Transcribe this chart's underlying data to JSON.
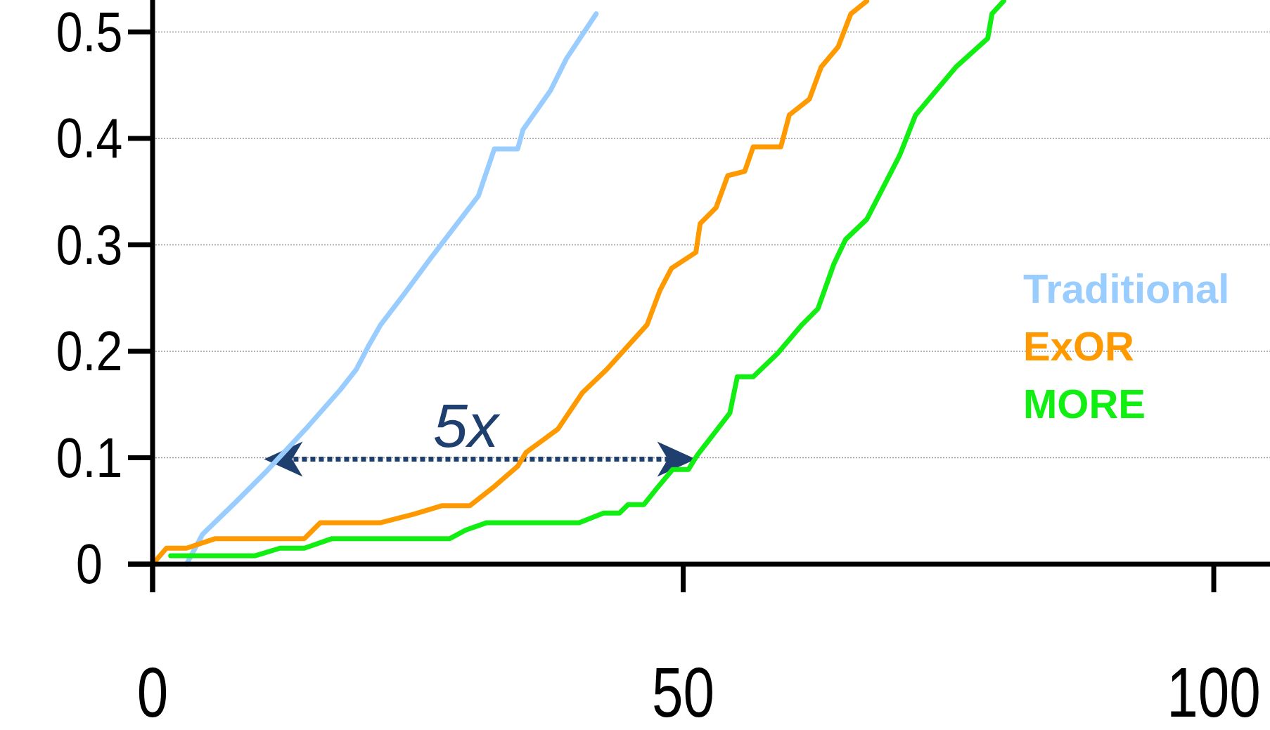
{
  "chart_data": {
    "type": "line",
    "xlim": [
      0,
      105.3
    ],
    "ylim": [
      0,
      0.53
    ],
    "xticks": [
      0,
      50,
      100
    ],
    "yticks": [
      0,
      0.1,
      0.2,
      0.3,
      0.4,
      0.5
    ],
    "grid": "y",
    "legend": "right",
    "line_style": "solid",
    "annotations": [
      "5x"
    ],
    "series": [
      {
        "name": "Traditional",
        "color": "#99ccff",
        "x": [
          3.2,
          4.7,
          7.8,
          10.8,
          14.7,
          17.7,
          19.2,
          20.4,
          21.5,
          23.8,
          26.1,
          28.4,
          30.7,
          32.2,
          34.4,
          34.9,
          37.5,
          39,
          41.8
        ],
        "values": [
          0,
          0.028,
          0.058,
          0.088,
          0.13,
          0.164,
          0.183,
          0.206,
          0.225,
          0.255,
          0.286,
          0.316,
          0.346,
          0.39,
          0.39,
          0.408,
          0.445,
          0.475,
          0.517
        ]
      },
      {
        "name": "ExOR",
        "color": "#ff9900",
        "x": [
          0,
          1.3,
          3.2,
          5.9,
          14.3,
          15.8,
          21.5,
          24.6,
          27.3,
          29.9,
          32.2,
          34.4,
          35.2,
          38.2,
          40.5,
          42.8,
          46.6,
          47.8,
          48.9,
          51.2,
          51.6,
          53.1,
          54.2,
          55.8,
          56.6,
          59.2,
          60,
          61.9,
          63,
          64.6,
          65.8,
          67.3
        ],
        "values": [
          0,
          0.015,
          0.015,
          0.024,
          0.024,
          0.039,
          0.039,
          0.047,
          0.055,
          0.055,
          0.073,
          0.092,
          0.105,
          0.127,
          0.161,
          0.183,
          0.225,
          0.257,
          0.278,
          0.293,
          0.32,
          0.335,
          0.365,
          0.369,
          0.392,
          0.392,
          0.422,
          0.437,
          0.467,
          0.486,
          0.517,
          0.529
        ]
      },
      {
        "name": "MORE",
        "color": "#11ee11",
        "x": [
          1.7,
          9.7,
          12,
          14.3,
          16.9,
          28,
          29.5,
          31.5,
          40.2,
          42.5,
          44,
          44.8,
          46.3,
          47.5,
          49,
          50.5,
          51.3,
          54.4,
          55.1,
          56.6,
          58.9,
          61.2,
          62.7,
          64.2,
          65.3,
          67.3,
          70.4,
          71.9,
          75.7,
          78.7,
          79.1,
          80.2
        ],
        "values": [
          0.008,
          0.008,
          0.015,
          0.015,
          0.024,
          0.024,
          0.032,
          0.039,
          0.039,
          0.048,
          0.048,
          0.056,
          0.056,
          0.071,
          0.089,
          0.089,
          0.102,
          0.142,
          0.176,
          0.176,
          0.198,
          0.225,
          0.24,
          0.282,
          0.305,
          0.324,
          0.384,
          0.422,
          0.467,
          0.494,
          0.517,
          0.529
        ]
      }
    ]
  }
}
